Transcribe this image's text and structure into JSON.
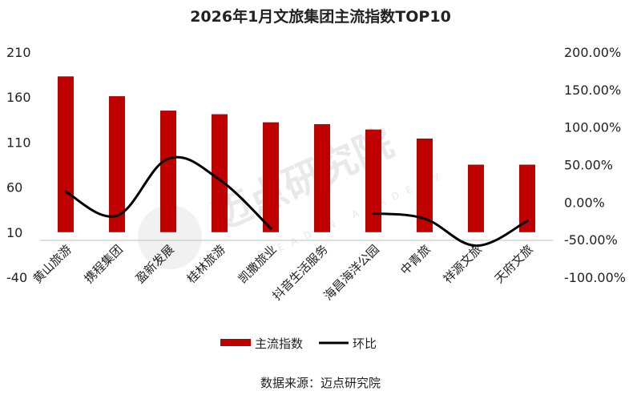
{
  "chart_data": {
    "type": "bar",
    "title": "2026年1月文旅集团主流指数TOP10",
    "categories": [
      "黄山旅游",
      "携程集团",
      "盈新发展",
      "桂林旅游",
      "凯撒旅业",
      "抖音生活服务",
      "海昌海洋公园",
      "中青旅",
      "祥源文旅",
      "天府文旅"
    ],
    "series": [
      {
        "name": "主流指数",
        "type": "bar",
        "axis": "left",
        "color": "#c00000",
        "values": [
          183,
          161,
          145,
          141,
          132,
          130,
          124,
          114,
          85,
          85
        ]
      },
      {
        "name": "环比",
        "type": "line",
        "axis": "right",
        "color": "#000000",
        "values_percent": [
          14,
          -18,
          58,
          30,
          -35,
          null,
          -15,
          -22,
          -58,
          -25
        ]
      }
    ],
    "left_axis": {
      "ylim": [
        -40,
        210
      ],
      "ticks": [
        "210",
        "160",
        "110",
        "60",
        "10",
        "-40"
      ]
    },
    "right_axis": {
      "ylim": [
        -100,
        200
      ],
      "ticks": [
        "200.00%",
        "150.00%",
        "100.00%",
        "50.00%",
        "0.00%",
        "-50.00%",
        "-100.00%"
      ]
    },
    "legend": {
      "position": "bottom",
      "labels": [
        "主流指数",
        "环比"
      ]
    }
  },
  "watermark": {
    "text": "迈点研究院",
    "subtext": "MEADIN ACADEMY"
  },
  "source_note": "数据来源：迈点研究院"
}
